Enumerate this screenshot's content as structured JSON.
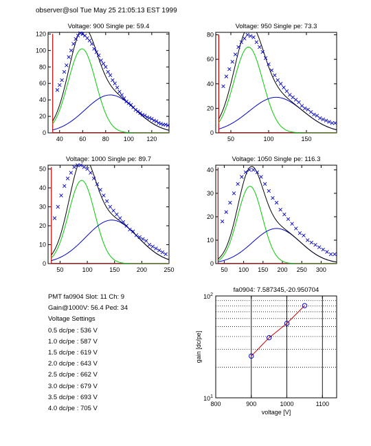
{
  "header": "observer@sol  Tue May 25 21:05:13 EST 1999",
  "info": {
    "line1": "PMT fa0904 Slot: 11 Ch: 9",
    "line2": "Gain@1000V: 56.4 Ped: 34",
    "line3": "Voltage Settings",
    "settings": [
      "0.5 dc/pe : 536 V",
      "1.0 dc/pe : 587 V",
      "1.5 dc/pe : 619 V",
      "2.0 dc/pe : 643 V",
      "2.5 dc/pe : 662 V",
      "3.0 dc/pe : 679 V",
      "3.5 dc/pe : 693 V",
      "4.0 dc/pe : 705 V"
    ]
  },
  "colors": {
    "fit_total": "#000000",
    "gauss_green": "#00cc00",
    "gauss_blue": "#0000cc",
    "data_marker": "#0000cc",
    "pedestal": "#cc0000",
    "gain_line": "#cc0000"
  },
  "chart_data": [
    {
      "type": "scatter",
      "title": "Voltage: 900 Single pe: 59.4",
      "xlim": [
        30,
        135
      ],
      "ylim": [
        0,
        122
      ],
      "xticks": [
        40,
        60,
        80,
        100,
        120
      ],
      "yticks": [
        0,
        20,
        40,
        60,
        80,
        100,
        120
      ],
      "pedestal": {
        "x": 34,
        "height": 120
      },
      "green": {
        "amp": 102,
        "mu": 59.4,
        "sigma": 12
      },
      "blue": {
        "amp": 46,
        "mu": 84,
        "sigma": 22
      },
      "series": [
        {
          "values": [
            [
              38,
              52
            ],
            [
              40,
              58
            ],
            [
              42,
              64
            ],
            [
              44,
              74
            ],
            [
              46,
              82
            ],
            [
              48,
              92
            ],
            [
              50,
              100
            ],
            [
              52,
              108
            ],
            [
              54,
              114
            ],
            [
              56,
              118
            ],
            [
              58,
              121
            ],
            [
              60,
              120
            ],
            [
              62,
              118
            ],
            [
              64,
              115
            ],
            [
              66,
              112
            ],
            [
              68,
              108
            ],
            [
              70,
              102
            ],
            [
              72,
              98
            ],
            [
              74,
              94
            ],
            [
              76,
              88
            ],
            [
              78,
              84
            ],
            [
              80,
              80
            ],
            [
              82,
              74
            ],
            [
              84,
              70
            ],
            [
              86,
              64
            ],
            [
              88,
              60
            ],
            [
              90,
              55
            ],
            [
              92,
              50
            ],
            [
              94,
              46
            ],
            [
              96,
              42
            ],
            [
              98,
              38
            ],
            [
              100,
              36
            ],
            [
              102,
              34
            ],
            [
              104,
              31
            ],
            [
              106,
              28
            ],
            [
              108,
              26
            ],
            [
              110,
              24
            ],
            [
              112,
              22
            ],
            [
              114,
              21
            ],
            [
              116,
              19
            ],
            [
              118,
              18
            ],
            [
              120,
              17
            ],
            [
              122,
              15
            ],
            [
              124,
              14
            ],
            [
              126,
              12
            ],
            [
              128,
              11
            ],
            [
              130,
              10
            ],
            [
              132,
              10
            ],
            [
              134,
              9
            ]
          ]
        }
      ]
    },
    {
      "type": "scatter",
      "title": "Voltage: 950 Single pe: 73.3",
      "xlim": [
        30,
        190
      ],
      "ylim": [
        0,
        82
      ],
      "xticks": [
        50,
        100,
        150
      ],
      "yticks": [
        0,
        20,
        40,
        60,
        80
      ],
      "pedestal": {
        "x": 34,
        "height": 80
      },
      "green": {
        "amp": 70,
        "mu": 73.3,
        "sigma": 19
      },
      "blue": {
        "amp": 29,
        "mu": 110,
        "sigma": 36
      },
      "series": [
        {
          "values": [
            [
              40,
              38
            ],
            [
              44,
              46
            ],
            [
              48,
              52
            ],
            [
              52,
              58
            ],
            [
              56,
              64
            ],
            [
              60,
              70
            ],
            [
              64,
              74
            ],
            [
              68,
              77
            ],
            [
              72,
              80
            ],
            [
              76,
              79
            ],
            [
              80,
              78
            ],
            [
              84,
              74
            ],
            [
              88,
              70
            ],
            [
              92,
              66
            ],
            [
              96,
              61
            ],
            [
              100,
              56
            ],
            [
              104,
              51
            ],
            [
              108,
              47
            ],
            [
              112,
              43
            ],
            [
              116,
              40
            ],
            [
              120,
              37
            ],
            [
              124,
              34
            ],
            [
              128,
              31
            ],
            [
              132,
              29
            ],
            [
              136,
              27
            ],
            [
              140,
              25
            ],
            [
              144,
              22
            ],
            [
              148,
              20
            ],
            [
              152,
              19
            ],
            [
              156,
              17
            ],
            [
              160,
              15
            ],
            [
              164,
              14
            ],
            [
              168,
              12
            ],
            [
              172,
              11
            ],
            [
              176,
              10
            ],
            [
              180,
              9
            ],
            [
              184,
              8
            ],
            [
              188,
              8
            ]
          ]
        }
      ]
    },
    {
      "type": "scatter",
      "title": "Voltage: 1000 Single pe: 89.7",
      "xlim": [
        28,
        250
      ],
      "ylim": [
        0,
        52
      ],
      "xticks": [
        50,
        100,
        150,
        200,
        250
      ],
      "yticks": [
        0,
        10,
        20,
        30,
        40,
        50
      ],
      "pedestal": {
        "x": 34,
        "height": 51
      },
      "green": {
        "amp": 44,
        "mu": 89.7,
        "sigma": 24
      },
      "blue": {
        "amp": 23,
        "mu": 145,
        "sigma": 48
      },
      "series": [
        {
          "values": [
            [
              40,
              24
            ],
            [
              46,
              30
            ],
            [
              52,
              36
            ],
            [
              58,
              41
            ],
            [
              64,
              45
            ],
            [
              70,
              48
            ],
            [
              76,
              51
            ],
            [
              82,
              52
            ],
            [
              88,
              52
            ],
            [
              94,
              51
            ],
            [
              100,
              50
            ],
            [
              106,
              48
            ],
            [
              112,
              45
            ],
            [
              118,
              42
            ],
            [
              124,
              39
            ],
            [
              130,
              36
            ],
            [
              136,
              33
            ],
            [
              142,
              30
            ],
            [
              148,
              28
            ],
            [
              154,
              26
            ],
            [
              160,
              24
            ],
            [
              166,
              22
            ],
            [
              172,
              20
            ],
            [
              178,
              18
            ],
            [
              184,
              17
            ],
            [
              190,
              15
            ],
            [
              196,
              14
            ],
            [
              202,
              13
            ],
            [
              208,
              12
            ],
            [
              214,
              10
            ],
            [
              220,
              9
            ],
            [
              226,
              8
            ],
            [
              232,
              7
            ],
            [
              238,
              6
            ],
            [
              244,
              5
            ]
          ]
        }
      ]
    },
    {
      "type": "scatter",
      "title": "Voltage: 1050 Single pe: 116.3",
      "xlim": [
        28,
        340
      ],
      "ylim": [
        0,
        42
      ],
      "xticks": [
        50,
        100,
        150,
        200,
        250,
        300
      ],
      "yticks": [
        0,
        10,
        20,
        30,
        40
      ],
      "pedestal": {
        "x": 34,
        "height": 41
      },
      "green": {
        "amp": 33,
        "mu": 116.3,
        "sigma": 32
      },
      "blue": {
        "amp": 15,
        "mu": 185,
        "sigma": 62
      },
      "series": [
        {
          "values": [
            [
              45,
              18
            ],
            [
              55,
              22
            ],
            [
              65,
              26
            ],
            [
              75,
              30
            ],
            [
              85,
              34
            ],
            [
              95,
              37
            ],
            [
              105,
              39
            ],
            [
              115,
              40
            ],
            [
              125,
              40
            ],
            [
              135,
              39
            ],
            [
              145,
              37
            ],
            [
              155,
              34
            ],
            [
              165,
              31
            ],
            [
              175,
              28
            ],
            [
              185,
              26
            ],
            [
              195,
              23
            ],
            [
              205,
              21
            ],
            [
              215,
              19
            ],
            [
              225,
              17
            ],
            [
              235,
              15
            ],
            [
              245,
              13
            ],
            [
              255,
              12
            ],
            [
              265,
              10
            ],
            [
              275,
              9
            ],
            [
              285,
              8
            ],
            [
              295,
              7
            ],
            [
              305,
              6
            ],
            [
              315,
              5
            ],
            [
              325,
              4
            ],
            [
              335,
              4
            ]
          ]
        }
      ]
    },
    {
      "type": "line",
      "title": "fa0904: 7.587345,-20.950704",
      "xlabel": "voltage [V]",
      "ylabel": "gain [dc/pe]",
      "xlim": [
        800,
        1140
      ],
      "ylim": [
        10,
        100
      ],
      "yscale": "log",
      "xticks": [
        800,
        900,
        1000,
        1100
      ],
      "yticks": [
        10,
        100
      ],
      "series": [
        {
          "x": [
            900,
            950,
            1000,
            1050
          ],
          "values": [
            25.7,
            38.9,
            53.8,
            80.4
          ]
        }
      ]
    }
  ]
}
